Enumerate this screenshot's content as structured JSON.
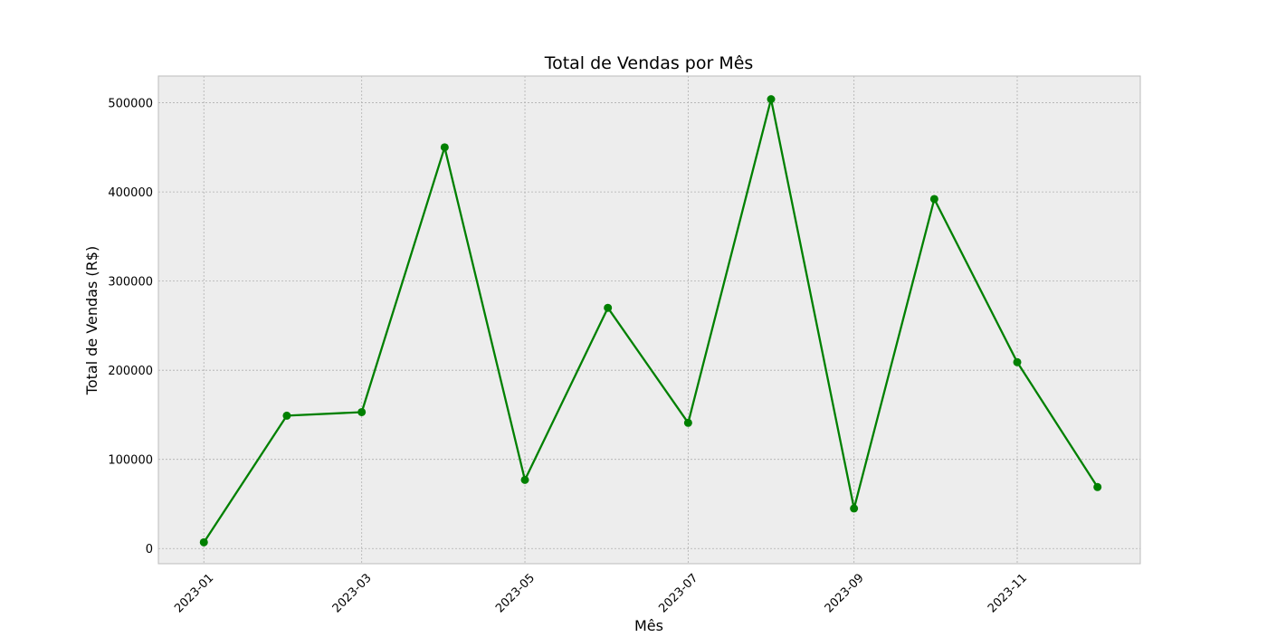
{
  "chart_data": {
    "type": "line",
    "title": "Total de Vendas por Mês",
    "xlabel": "Mês",
    "ylabel": "Total de Vendas (R$)",
    "x": [
      "2023-01-01",
      "2023-02-01",
      "2023-03-01",
      "2023-04-01",
      "2023-05-01",
      "2023-06-01",
      "2023-07-01",
      "2023-08-01",
      "2023-09-01",
      "2023-10-01",
      "2023-11-01",
      "2023-12-01"
    ],
    "series": [
      {
        "values": [
          7000,
          149000,
          153000,
          450000,
          77000,
          270000,
          141000,
          504000,
          45000,
          392000,
          209000,
          69000
        ],
        "color": "#008000",
        "marker": "circle"
      }
    ],
    "x_ticks": [
      "2023-01",
      "2023-03",
      "2023-05",
      "2023-07",
      "2023-09",
      "2023-11"
    ],
    "y_ticks": [
      "0",
      "100000",
      "200000",
      "300000",
      "400000",
      "500000"
    ],
    "ylim": [
      -17000,
      530000
    ],
    "xlim": [
      "2022-12-15",
      "2023-12-17"
    ],
    "grid": true,
    "grid_style": "dashed",
    "x_tick_rotation": 45,
    "colors": {
      "plot_background": "#ededed",
      "grid": "#b0b0b0",
      "line": "#008000"
    }
  }
}
